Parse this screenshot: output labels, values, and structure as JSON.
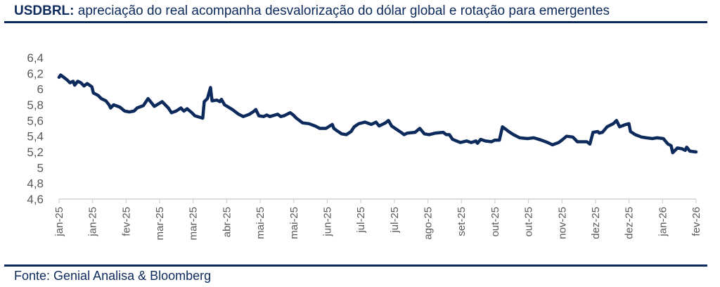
{
  "header": {
    "title_bold": "USDBRL:",
    "title_rest": " apreciação do real acompanha desvalorização do dólar global e rotação para emergentes"
  },
  "footer": {
    "source": "Fonte: Genial Analisa & Bloomberg"
  },
  "colors": {
    "line": "#0d2a5c",
    "axis_text": "#595959",
    "axis": "#d0d0d0"
  },
  "chart_data": {
    "type": "line",
    "title": "USDBRL: apreciação do real acompanha desvalorização do dólar global e rotação para emergentes",
    "xlabel": "",
    "ylabel": "",
    "ylim": [
      4.6,
      6.4
    ],
    "yticks": [
      "6,4",
      "6,2",
      "6",
      "5,8",
      "5,6",
      "5,4",
      "5,2",
      "5",
      "4,8",
      "4,6"
    ],
    "ytick_values": [
      6.4,
      6.2,
      6.0,
      5.8,
      5.6,
      5.4,
      5.2,
      5.0,
      4.8,
      4.6
    ],
    "xlim": [
      0,
      408
    ],
    "xunit": "days since start (approx.)",
    "xticks": [
      "jan-25",
      "jan-25",
      "fev-25",
      "mar-25",
      "mar-25",
      "abr-25",
      "mai-25",
      "mai-25",
      "jun-25",
      "jul-25",
      "jul-25",
      "ago-25",
      "set-25",
      "out-25",
      "out-25",
      "nov-25",
      "dez-25",
      "dez-25",
      "jan-26",
      "fev-26"
    ],
    "grid": false,
    "legend": "none",
    "series": [
      {
        "name": "USDBRL",
        "points": [
          [
            0,
            6.15
          ],
          [
            1,
            6.18
          ],
          [
            5,
            6.12
          ],
          [
            7,
            6.08
          ],
          [
            9,
            6.1
          ],
          [
            10,
            6.05
          ],
          [
            12,
            6.1
          ],
          [
            14,
            6.08
          ],
          [
            16,
            6.04
          ],
          [
            18,
            6.07
          ],
          [
            21,
            6.03
          ],
          [
            22,
            5.95
          ],
          [
            25,
            5.92
          ],
          [
            27,
            5.88
          ],
          [
            30,
            5.85
          ],
          [
            32,
            5.8
          ],
          [
            33,
            5.76
          ],
          [
            35,
            5.8
          ],
          [
            39,
            5.77
          ],
          [
            42,
            5.72
          ],
          [
            45,
            5.71
          ],
          [
            48,
            5.72
          ],
          [
            50,
            5.76
          ],
          [
            54,
            5.79
          ],
          [
            57,
            5.88
          ],
          [
            61,
            5.78
          ],
          [
            66,
            5.84
          ],
          [
            70,
            5.76
          ],
          [
            72,
            5.7
          ],
          [
            75,
            5.72
          ],
          [
            78,
            5.76
          ],
          [
            80,
            5.72
          ],
          [
            82,
            5.75
          ],
          [
            85,
            5.7
          ],
          [
            87,
            5.66
          ],
          [
            92,
            5.63
          ],
          [
            93,
            5.84
          ],
          [
            95,
            5.88
          ],
          [
            97,
            6.02
          ],
          [
            98,
            5.85
          ],
          [
            101,
            5.86
          ],
          [
            103,
            5.84
          ],
          [
            104,
            5.87
          ],
          [
            106,
            5.8
          ],
          [
            111,
            5.74
          ],
          [
            115,
            5.68
          ],
          [
            118,
            5.65
          ],
          [
            122,
            5.68
          ],
          [
            125,
            5.72
          ],
          [
            126,
            5.74
          ],
          [
            128,
            5.66
          ],
          [
            131,
            5.65
          ],
          [
            133,
            5.67
          ],
          [
            135,
            5.65
          ],
          [
            140,
            5.68
          ],
          [
            142,
            5.65
          ],
          [
            144,
            5.66
          ],
          [
            148,
            5.7
          ],
          [
            150,
            5.67
          ],
          [
            152,
            5.63
          ],
          [
            156,
            5.57
          ],
          [
            160,
            5.56
          ],
          [
            164,
            5.53
          ],
          [
            167,
            5.5
          ],
          [
            171,
            5.5
          ],
          [
            175,
            5.55
          ],
          [
            176,
            5.5
          ],
          [
            178,
            5.47
          ],
          [
            181,
            5.43
          ],
          [
            184,
            5.42
          ],
          [
            187,
            5.46
          ],
          [
            189,
            5.52
          ],
          [
            192,
            5.56
          ],
          [
            194,
            5.57
          ],
          [
            196,
            5.58
          ],
          [
            200,
            5.55
          ],
          [
            203,
            5.58
          ],
          [
            205,
            5.53
          ],
          [
            209,
            5.57
          ],
          [
            211,
            5.6
          ],
          [
            213,
            5.53
          ],
          [
            216,
            5.49
          ],
          [
            219,
            5.45
          ],
          [
            221,
            5.42
          ],
          [
            223,
            5.44
          ],
          [
            228,
            5.45
          ],
          [
            231,
            5.5
          ],
          [
            234,
            5.43
          ],
          [
            237,
            5.42
          ],
          [
            241,
            5.44
          ],
          [
            246,
            5.45
          ],
          [
            248,
            5.42
          ],
          [
            250,
            5.42
          ],
          [
            252,
            5.36
          ],
          [
            257,
            5.32
          ],
          [
            261,
            5.34
          ],
          [
            264,
            5.32
          ],
          [
            267,
            5.34
          ],
          [
            268,
            5.31
          ],
          [
            270,
            5.36
          ],
          [
            273,
            5.34
          ],
          [
            277,
            5.33
          ],
          [
            279,
            5.35
          ],
          [
            282,
            5.35
          ],
          [
            284,
            5.52
          ],
          [
            286,
            5.49
          ],
          [
            288,
            5.46
          ],
          [
            291,
            5.42
          ],
          [
            295,
            5.38
          ],
          [
            300,
            5.37
          ],
          [
            304,
            5.38
          ],
          [
            309,
            5.35
          ],
          [
            313,
            5.32
          ],
          [
            316,
            5.29
          ],
          [
            320,
            5.32
          ],
          [
            322,
            5.35
          ],
          [
            325,
            5.4
          ],
          [
            329,
            5.39
          ],
          [
            332,
            5.33
          ],
          [
            338,
            5.33
          ],
          [
            340,
            5.3
          ],
          [
            342,
            5.45
          ],
          [
            345,
            5.46
          ],
          [
            346,
            5.44
          ],
          [
            348,
            5.45
          ],
          [
            351,
            5.52
          ],
          [
            355,
            5.56
          ],
          [
            357,
            5.6
          ],
          [
            359,
            5.52
          ],
          [
            363,
            5.55
          ],
          [
            365,
            5.56
          ],
          [
            366,
            5.46
          ],
          [
            369,
            5.42
          ],
          [
            373,
            5.39
          ],
          [
            376,
            5.38
          ],
          [
            380,
            5.37
          ],
          [
            383,
            5.38
          ],
          [
            387,
            5.37
          ],
          [
            390,
            5.3
          ],
          [
            392,
            5.28
          ],
          [
            393,
            5.19
          ],
          [
            396,
            5.25
          ],
          [
            399,
            5.24
          ],
          [
            401,
            5.22
          ],
          [
            402,
            5.26
          ],
          [
            404,
            5.21
          ],
          [
            408,
            5.2
          ]
        ]
      }
    ]
  }
}
